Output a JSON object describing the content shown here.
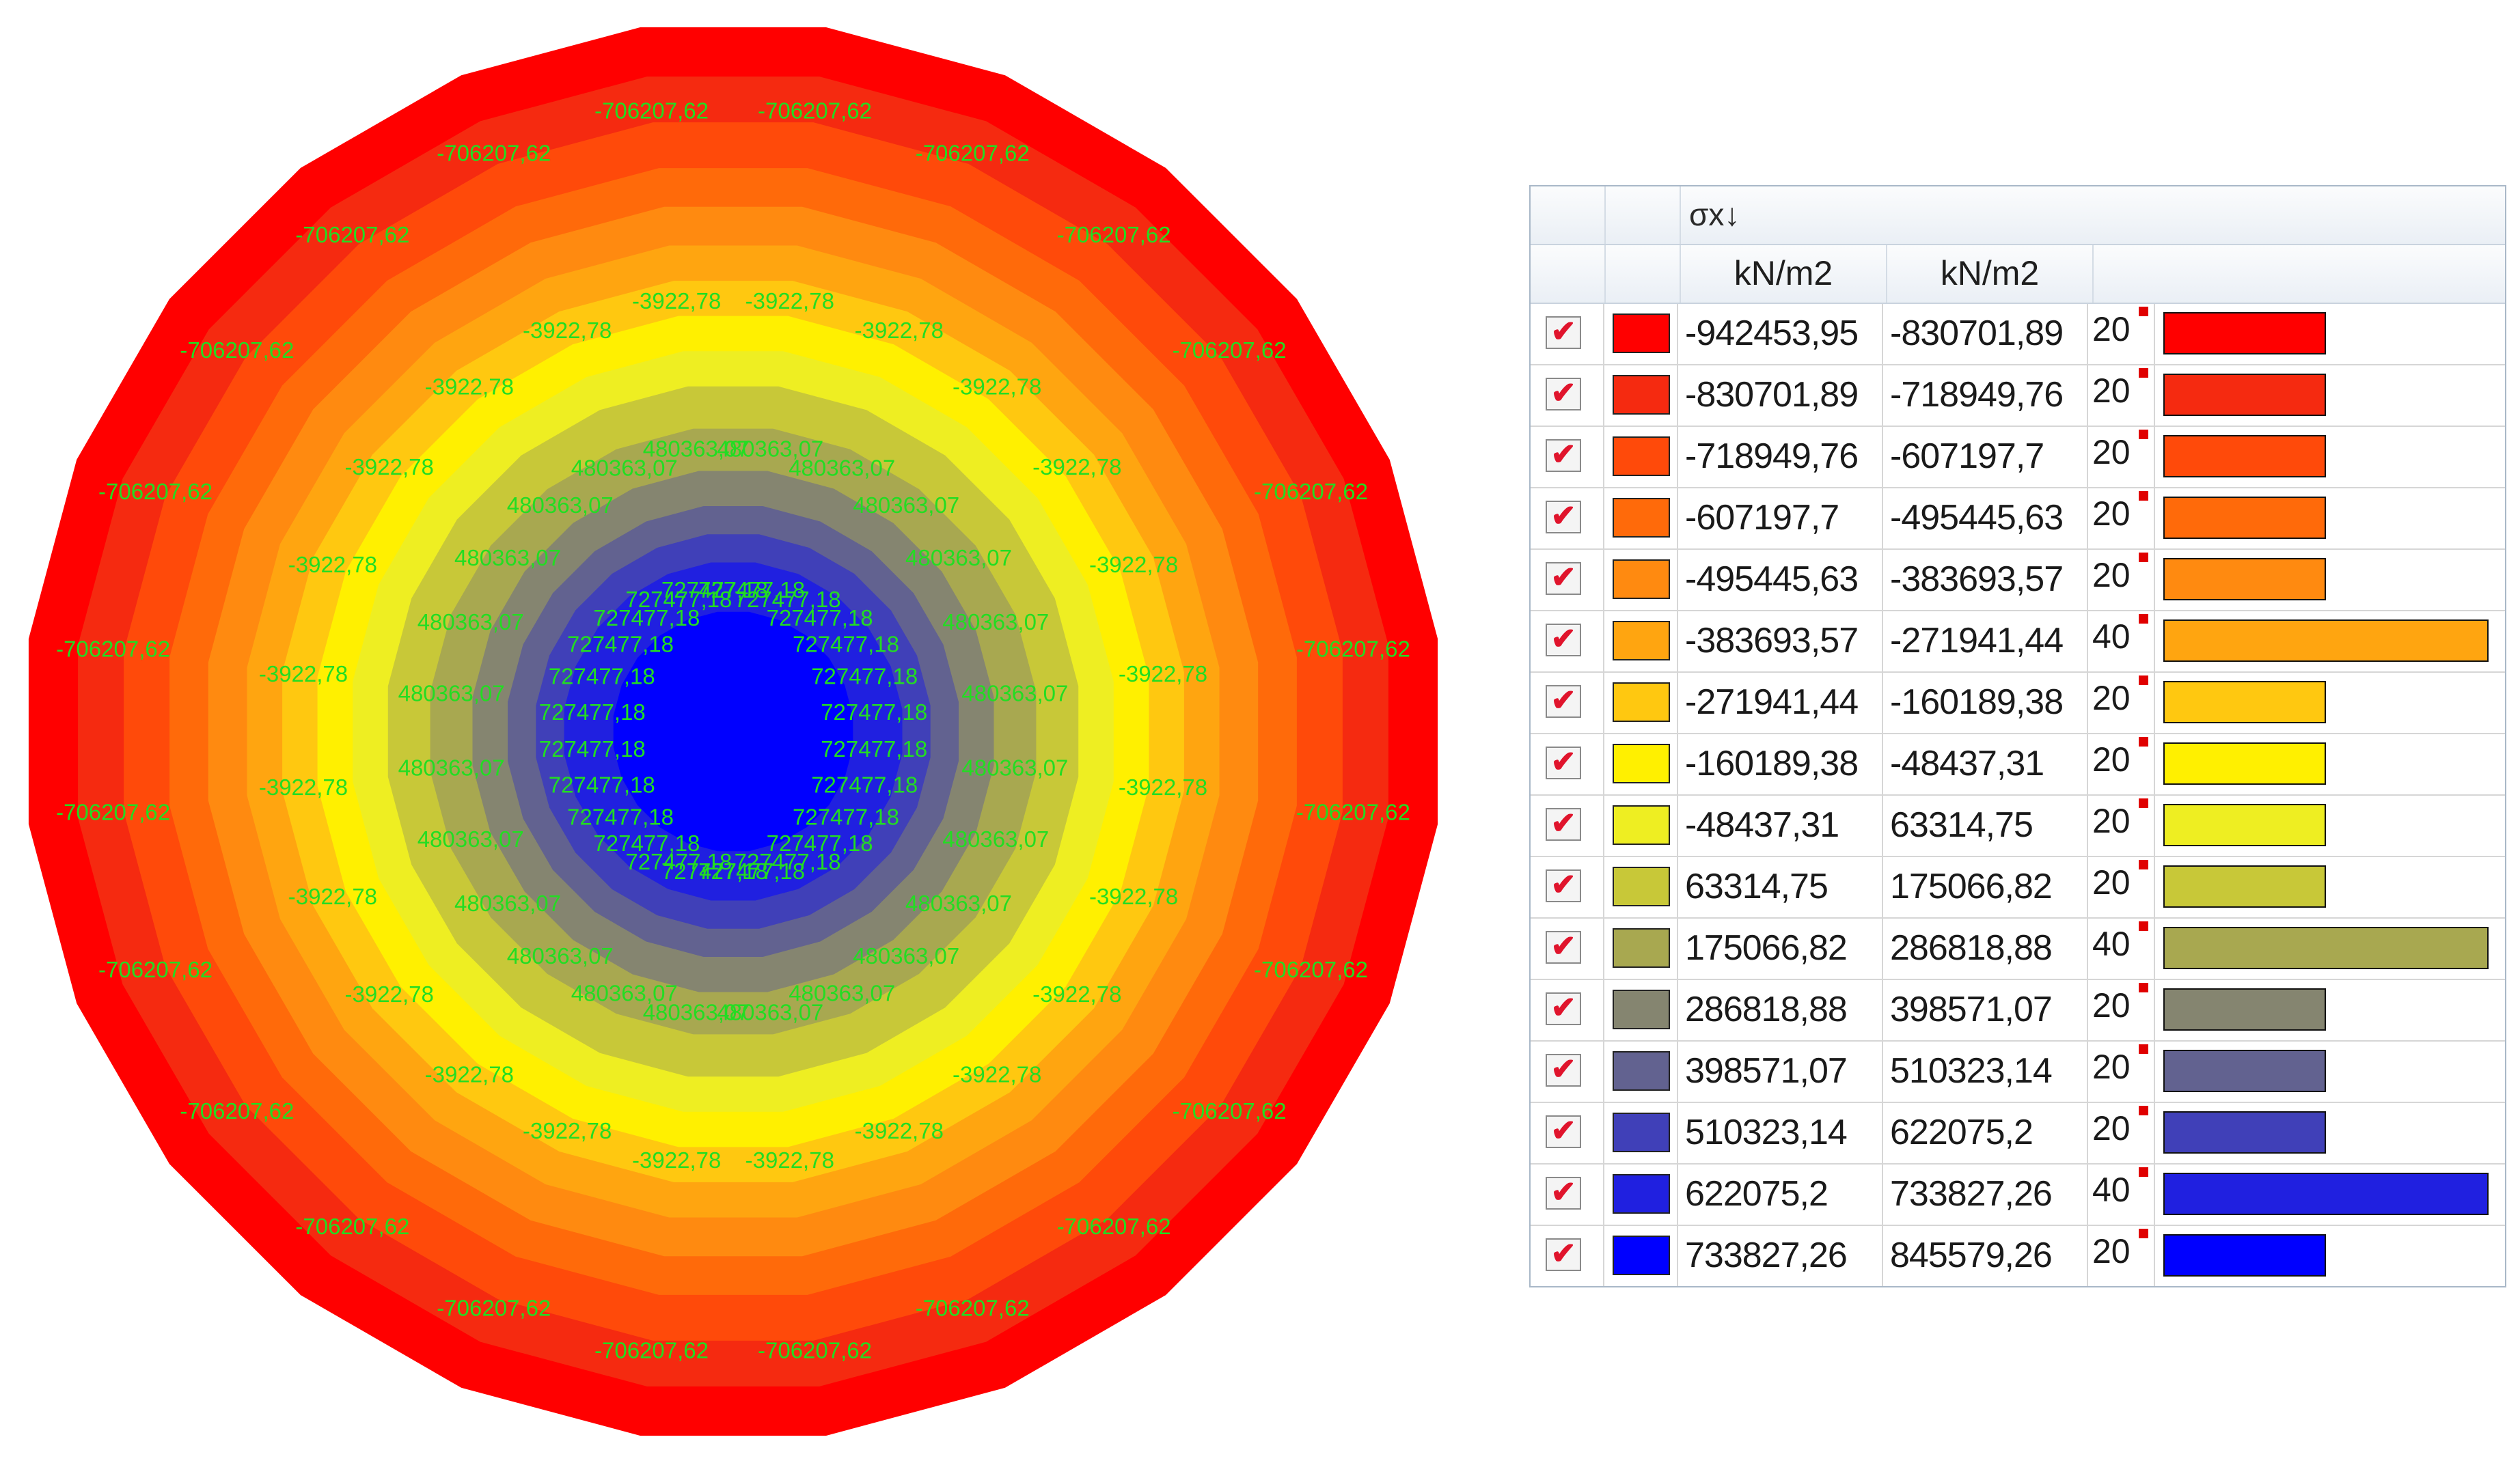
{
  "legend": {
    "title": "σx↓",
    "unit1": "kN/m2",
    "unit2": "kN/m2",
    "rows": [
      {
        "from": "-942453,95",
        "to": "-830701,89",
        "pct": "20",
        "color": "#ff0000"
      },
      {
        "from": "-830701,89",
        "to": "-718949,76",
        "pct": "20",
        "color": "#f52a10"
      },
      {
        "from": "-718949,76",
        "to": "-607197,7",
        "pct": "20",
        "color": "#ff4a0a"
      },
      {
        "from": "-607197,7",
        "to": "-495445,63",
        "pct": "20",
        "color": "#ff6a0a"
      },
      {
        "from": "-495445,63",
        "to": "-383693,57",
        "pct": "20",
        "color": "#ff8a10"
      },
      {
        "from": "-383693,57",
        "to": "-271941,44",
        "pct": "40",
        "color": "#ffa510"
      },
      {
        "from": "-271941,44",
        "to": "-160189,38",
        "pct": "20",
        "color": "#ffc810"
      },
      {
        "from": "-160189,38",
        "to": "-48437,31",
        "pct": "20",
        "color": "#fff000"
      },
      {
        "from": "-48437,31",
        "to": "63314,75",
        "pct": "20",
        "color": "#eeee22"
      },
      {
        "from": "63314,75",
        "to": "175066,82",
        "pct": "20",
        "color": "#c8c838"
      },
      {
        "from": "175066,82",
        "to": "286818,88",
        "pct": "40",
        "color": "#a8a850"
      },
      {
        "from": "286818,88",
        "to": "398571,07",
        "pct": "20",
        "color": "#858570"
      },
      {
        "from": "398571,07",
        "to": "510323,14",
        "pct": "20",
        "color": "#626290"
      },
      {
        "from": "510323,14",
        "to": "622075,2",
        "pct": "20",
        "color": "#4040b8"
      },
      {
        "from": "622075,2",
        "to": "733827,26",
        "pct": "40",
        "color": "#2020e0"
      },
      {
        "from": "733827,26",
        "to": "845579,26",
        "pct": "20",
        "color": "#0000ff"
      }
    ]
  },
  "plot": {
    "ring_colors": [
      "#ff0000",
      "#f52a10",
      "#ff4a0a",
      "#ff6a0a",
      "#ff8a10",
      "#ffa510",
      "#ffc810",
      "#fff000",
      "#eeee22",
      "#c8c838",
      "#a8a850",
      "#858570",
      "#626290",
      "#4040b8",
      "#2020e0",
      "#0000ff"
    ],
    "label_color": "#22dd22",
    "contour_labels": [
      "-706207,62",
      "-3922,78",
      "480363,07",
      "727477,18"
    ]
  }
}
